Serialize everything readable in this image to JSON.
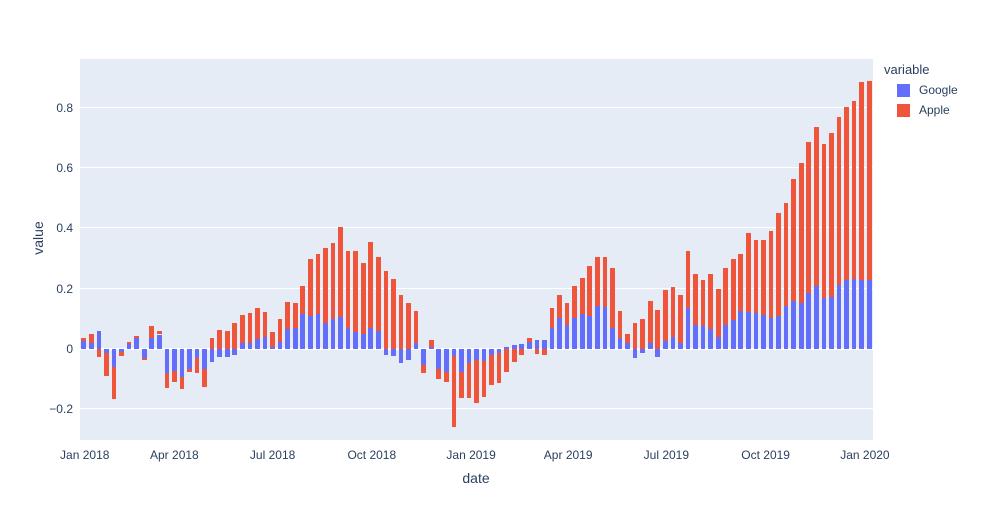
{
  "figure": {
    "background_color": "#ffffff",
    "plot_background_color": "#E5ECF6",
    "grid_color": "#ffffff",
    "text_color": "#2a3f5f"
  },
  "legend": {
    "title": "variable",
    "items": [
      {
        "label": "Google",
        "color": "#636EFA"
      },
      {
        "label": "Apple",
        "color": "#EF553B"
      }
    ]
  },
  "chart_data": {
    "type": "bar",
    "stacked": true,
    "title": "",
    "xlabel": "date",
    "ylabel": "value",
    "legend_position": "top-right-outside",
    "grid": true,
    "x": [
      "2018-01-07",
      "2018-01-14",
      "2018-01-21",
      "2018-01-28",
      "2018-02-04",
      "2018-02-11",
      "2018-02-18",
      "2018-02-25",
      "2018-03-04",
      "2018-03-11",
      "2018-03-18",
      "2018-03-25",
      "2018-04-01",
      "2018-04-08",
      "2018-04-15",
      "2018-04-22",
      "2018-04-29",
      "2018-05-06",
      "2018-05-13",
      "2018-05-20",
      "2018-05-27",
      "2018-06-03",
      "2018-06-10",
      "2018-06-17",
      "2018-06-24",
      "2018-07-01",
      "2018-07-08",
      "2018-07-15",
      "2018-07-22",
      "2018-07-29",
      "2018-08-05",
      "2018-08-12",
      "2018-08-19",
      "2018-08-26",
      "2018-09-02",
      "2018-09-09",
      "2018-09-16",
      "2018-09-23",
      "2018-09-30",
      "2018-10-07",
      "2018-10-14",
      "2018-10-21",
      "2018-10-28",
      "2018-11-04",
      "2018-11-11",
      "2018-11-18",
      "2018-11-25",
      "2018-12-02",
      "2018-12-09",
      "2018-12-16",
      "2018-12-23",
      "2018-12-30",
      "2019-01-06",
      "2019-01-13",
      "2019-01-20",
      "2019-01-27",
      "2019-02-03",
      "2019-02-10",
      "2019-02-17",
      "2019-02-24",
      "2019-03-03",
      "2019-03-10",
      "2019-03-17",
      "2019-03-24",
      "2019-03-31",
      "2019-04-07",
      "2019-04-14",
      "2019-04-21",
      "2019-04-28",
      "2019-05-05",
      "2019-05-12",
      "2019-05-19",
      "2019-05-26",
      "2019-06-02",
      "2019-06-09",
      "2019-06-16",
      "2019-06-23",
      "2019-06-30",
      "2019-07-07",
      "2019-07-14",
      "2019-07-21",
      "2019-07-28",
      "2019-08-04",
      "2019-08-11",
      "2019-08-18",
      "2019-08-25",
      "2019-09-01",
      "2019-09-08",
      "2019-09-15",
      "2019-09-22",
      "2019-09-29",
      "2019-10-06",
      "2019-10-13",
      "2019-10-20",
      "2019-10-27",
      "2019-11-03",
      "2019-11-10",
      "2019-11-17",
      "2019-11-24",
      "2019-12-01",
      "2019-12-08",
      "2019-12-15",
      "2019-12-22",
      "2019-12-29",
      "2020-01-05"
    ],
    "series": [
      {
        "name": "Google",
        "color": "#636EFA",
        "values": [
          0.025,
          0.02,
          0.058,
          -0.015,
          -0.06,
          -0.01,
          0.015,
          0.038,
          -0.03,
          0.035,
          0.048,
          -0.08,
          -0.073,
          -0.094,
          -0.067,
          -0.03,
          -0.065,
          -0.042,
          -0.026,
          -0.026,
          -0.02,
          0.019,
          0.019,
          0.032,
          0.041,
          0.007,
          0.023,
          0.066,
          0.068,
          0.115,
          0.11,
          0.115,
          0.085,
          0.1,
          0.105,
          0.068,
          0.055,
          0.05,
          0.069,
          0.06,
          -0.019,
          -0.024,
          -0.045,
          -0.035,
          0.02,
          -0.053,
          0.005,
          -0.068,
          -0.075,
          -0.022,
          -0.075,
          -0.045,
          -0.035,
          -0.04,
          -0.02,
          -0.014,
          0.005,
          0.013,
          0.016,
          0.024,
          0.03,
          0.03,
          0.071,
          0.104,
          0.08,
          0.102,
          0.115,
          0.108,
          0.144,
          0.14,
          0.07,
          0.035,
          0.02,
          -0.03,
          -0.015,
          0.02,
          -0.025,
          0.025,
          0.04,
          0.02,
          0.135,
          0.08,
          0.075,
          0.065,
          0.04,
          0.08,
          0.095,
          0.125,
          0.124,
          0.119,
          0.113,
          0.102,
          0.108,
          0.141,
          0.158,
          0.152,
          0.185,
          0.208,
          0.169,
          0.174,
          0.213,
          0.23,
          0.232,
          0.23,
          0.228
        ]
      },
      {
        "name": "Apple",
        "color": "#EF553B",
        "values": [
          0.01,
          0.03,
          -0.025,
          -0.075,
          -0.105,
          -0.015,
          0.008,
          0.005,
          -0.005,
          0.04,
          0.01,
          -0.05,
          -0.037,
          -0.04,
          -0.011,
          -0.05,
          -0.06,
          0.036,
          0.063,
          0.058,
          0.085,
          0.094,
          0.1,
          0.103,
          0.08,
          0.05,
          0.075,
          0.091,
          0.085,
          0.095,
          0.19,
          0.2,
          0.25,
          0.25,
          0.3,
          0.256,
          0.27,
          0.235,
          0.285,
          0.245,
          0.258,
          0.231,
          0.178,
          0.152,
          0.105,
          -0.028,
          0.025,
          -0.033,
          -0.033,
          -0.238,
          -0.089,
          -0.119,
          -0.144,
          -0.12,
          -0.1,
          -0.1,
          -0.075,
          -0.042,
          -0.02,
          0.013,
          -0.018,
          -0.02,
          0.064,
          0.076,
          0.072,
          0.108,
          0.121,
          0.167,
          0.161,
          0.165,
          0.2,
          0.09,
          0.03,
          0.085,
          0.1,
          0.14,
          0.13,
          0.17,
          0.165,
          0.16,
          0.19,
          0.17,
          0.155,
          0.185,
          0.16,
          0.19,
          0.205,
          0.19,
          0.261,
          0.244,
          0.25,
          0.289,
          0.344,
          0.344,
          0.405,
          0.466,
          0.5,
          0.527,
          0.511,
          0.544,
          0.555,
          0.572,
          0.592,
          0.655,
          0.662
        ]
      }
    ],
    "yaxis": {
      "range": [
        -0.302,
        0.962
      ],
      "ticks": [
        {
          "value": 0.8,
          "label": "0.8"
        },
        {
          "value": 0.6,
          "label": "0.6"
        },
        {
          "value": 0.4,
          "label": "0.4"
        },
        {
          "value": 0.2,
          "label": "0.2"
        },
        {
          "value": 0,
          "label": "0"
        },
        {
          "value": -0.2,
          "label": "−0.2"
        }
      ]
    },
    "xaxis": {
      "ticks": [
        {
          "label": "Jan 2018",
          "pct": 0.6
        },
        {
          "label": "Apr 2018",
          "pct": 11.9
        },
        {
          "label": "Jul 2018",
          "pct": 24.29
        },
        {
          "label": "Oct 2018",
          "pct": 36.8
        },
        {
          "label": "Jan 2019",
          "pct": 49.32
        },
        {
          "label": "Apr 2019",
          "pct": 61.56
        },
        {
          "label": "Jul 2019",
          "pct": 73.94
        },
        {
          "label": "Oct 2019",
          "pct": 86.46
        },
        {
          "label": "Jan 2020",
          "pct": 98.98
        }
      ]
    }
  }
}
